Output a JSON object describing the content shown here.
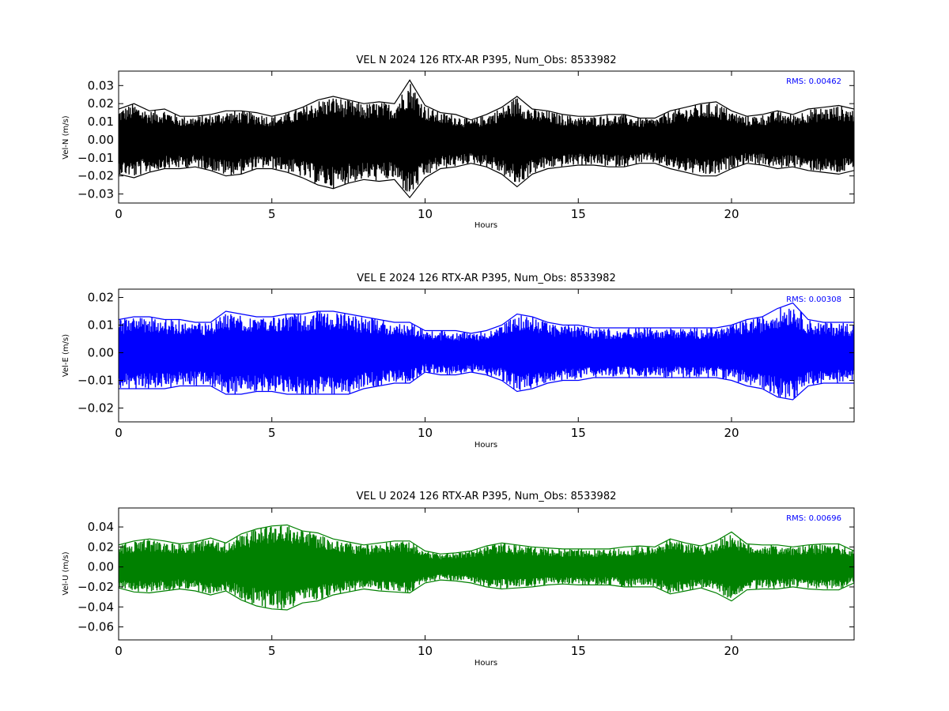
{
  "chart_data": [
    {
      "type": "line",
      "title": "VEL N 2024 126 RTX-AR  P395, Num_Obs: 8533982",
      "xlabel": "Hours",
      "ylabel": "Vel-N (m/s)",
      "xlim": [
        0,
        24
      ],
      "ylim": [
        -0.035,
        0.038
      ],
      "xticks": [
        "0",
        "5",
        "10",
        "15",
        "20"
      ],
      "xtick_values": [
        0,
        5,
        10,
        15,
        20
      ],
      "yticks": [
        "0.03",
        "0.02",
        "0.01",
        "0.00",
        "−0.01",
        "−0.02",
        "−0.03"
      ],
      "ytick_values": [
        0.03,
        0.02,
        0.01,
        0.0,
        -0.01,
        -0.02,
        -0.03
      ],
      "grid": false,
      "color": "#000000",
      "annotation": "RMS:  0.00462",
      "series": [
        {
          "hours": [
            0,
            0.5,
            1,
            1.5,
            2,
            2.5,
            3,
            3.5,
            4,
            4.5,
            5,
            5.5,
            6,
            6.5,
            7,
            7.5,
            8,
            8.5,
            9,
            9.5,
            10,
            10.5,
            11,
            11.5,
            12,
            12.5,
            13,
            13.5,
            14,
            14.5,
            15,
            15.5,
            16,
            16.5,
            17,
            17.5,
            18,
            18.5,
            19,
            19.5,
            20,
            20.5,
            21,
            21.5,
            22,
            22.5,
            23,
            23.5,
            24
          ],
          "upper": [
            0.017,
            0.02,
            0.016,
            0.017,
            0.013,
            0.013,
            0.014,
            0.016,
            0.016,
            0.015,
            0.013,
            0.015,
            0.018,
            0.022,
            0.024,
            0.022,
            0.02,
            0.021,
            0.02,
            0.033,
            0.019,
            0.015,
            0.014,
            0.011,
            0.014,
            0.018,
            0.024,
            0.017,
            0.016,
            0.014,
            0.013,
            0.013,
            0.014,
            0.014,
            0.012,
            0.012,
            0.016,
            0.018,
            0.02,
            0.021,
            0.016,
            0.013,
            0.014,
            0.016,
            0.014,
            0.017,
            0.018,
            0.019,
            0.017
          ],
          "lower": [
            -0.019,
            -0.021,
            -0.018,
            -0.016,
            -0.016,
            -0.015,
            -0.017,
            -0.02,
            -0.019,
            -0.016,
            -0.016,
            -0.018,
            -0.021,
            -0.025,
            -0.027,
            -0.024,
            -0.022,
            -0.023,
            -0.022,
            -0.032,
            -0.021,
            -0.016,
            -0.015,
            -0.013,
            -0.015,
            -0.019,
            -0.026,
            -0.019,
            -0.016,
            -0.015,
            -0.014,
            -0.014,
            -0.015,
            -0.015,
            -0.013,
            -0.013,
            -0.016,
            -0.018,
            -0.02,
            -0.02,
            -0.016,
            -0.013,
            -0.014,
            -0.016,
            -0.015,
            -0.017,
            -0.018,
            -0.019,
            -0.017
          ]
        }
      ]
    },
    {
      "type": "line",
      "title": "VEL E 2024 126 RTX-AR  P395, Num_Obs: 8533982",
      "xlabel": "Hours",
      "ylabel": "Vel-E (m/s)",
      "xlim": [
        0,
        24
      ],
      "ylim": [
        -0.025,
        0.023
      ],
      "xticks": [
        "0",
        "5",
        "10",
        "15",
        "20"
      ],
      "xtick_values": [
        0,
        5,
        10,
        15,
        20
      ],
      "yticks": [
        "0.02",
        "0.01",
        "0.00",
        "−0.01",
        "−0.02"
      ],
      "ytick_values": [
        0.02,
        0.01,
        0.0,
        -0.01,
        -0.02
      ],
      "grid": false,
      "color": "#0000ff",
      "annotation": "RMS:  0.00308",
      "series": [
        {
          "hours": [
            0,
            0.5,
            1,
            1.5,
            2,
            2.5,
            3,
            3.5,
            4,
            4.5,
            5,
            5.5,
            6,
            6.5,
            7,
            7.5,
            8,
            8.5,
            9,
            9.5,
            10,
            10.5,
            11,
            11.5,
            12,
            12.5,
            13,
            13.5,
            14,
            14.5,
            15,
            15.5,
            16,
            16.5,
            17,
            17.5,
            18,
            18.5,
            19,
            19.5,
            20,
            20.5,
            21,
            21.5,
            22,
            22.5,
            23,
            23.5,
            24
          ],
          "upper": [
            0.012,
            0.013,
            0.013,
            0.012,
            0.012,
            0.011,
            0.011,
            0.015,
            0.014,
            0.013,
            0.013,
            0.014,
            0.014,
            0.015,
            0.015,
            0.014,
            0.013,
            0.012,
            0.011,
            0.011,
            0.008,
            0.008,
            0.008,
            0.007,
            0.008,
            0.01,
            0.014,
            0.013,
            0.011,
            0.01,
            0.01,
            0.009,
            0.009,
            0.009,
            0.009,
            0.009,
            0.009,
            0.009,
            0.009,
            0.009,
            0.01,
            0.012,
            0.013,
            0.016,
            0.018,
            0.012,
            0.011,
            0.011,
            0.011
          ],
          "lower": [
            -0.013,
            -0.013,
            -0.013,
            -0.013,
            -0.012,
            -0.012,
            -0.012,
            -0.015,
            -0.015,
            -0.014,
            -0.014,
            -0.015,
            -0.015,
            -0.015,
            -0.015,
            -0.015,
            -0.013,
            -0.012,
            -0.011,
            -0.011,
            -0.007,
            -0.008,
            -0.008,
            -0.007,
            -0.008,
            -0.01,
            -0.014,
            -0.013,
            -0.011,
            -0.01,
            -0.01,
            -0.009,
            -0.009,
            -0.009,
            -0.009,
            -0.009,
            -0.009,
            -0.009,
            -0.009,
            -0.009,
            -0.01,
            -0.012,
            -0.013,
            -0.016,
            -0.017,
            -0.012,
            -0.011,
            -0.011,
            -0.011
          ]
        }
      ]
    },
    {
      "type": "line",
      "title": "VEL U 2024 126 RTX-AR  P395, Num_Obs: 8533982",
      "xlabel": "Hours",
      "ylabel": "Vel-U (m/s)",
      "xlim": [
        0,
        24
      ],
      "ylim": [
        -0.073,
        0.059
      ],
      "xticks": [
        "0",
        "5",
        "10",
        "15",
        "20"
      ],
      "xtick_values": [
        0,
        5,
        10,
        15,
        20
      ],
      "yticks": [
        "0.04",
        "0.02",
        "0.00",
        "−0.02",
        "−0.04",
        "−0.06"
      ],
      "ytick_values": [
        0.04,
        0.02,
        0.0,
        -0.02,
        -0.04,
        -0.06
      ],
      "grid": false,
      "color": "#008000",
      "annotation": "RMS:  0.00696",
      "series": [
        {
          "hours": [
            0,
            0.5,
            1,
            1.5,
            2,
            2.5,
            3,
            3.5,
            4,
            4.5,
            5,
            5.5,
            6,
            6.5,
            7,
            7.5,
            8,
            8.5,
            9,
            9.5,
            10,
            10.5,
            11,
            11.5,
            12,
            12.5,
            13,
            13.5,
            14,
            14.5,
            15,
            15.5,
            16,
            16.5,
            17,
            17.5,
            18,
            18.5,
            19,
            19.5,
            20,
            20.5,
            21,
            21.5,
            22,
            22.5,
            23,
            23.5,
            24
          ],
          "upper": [
            0.022,
            0.026,
            0.028,
            0.026,
            0.023,
            0.025,
            0.029,
            0.024,
            0.033,
            0.038,
            0.041,
            0.042,
            0.036,
            0.034,
            0.028,
            0.025,
            0.022,
            0.024,
            0.026,
            0.026,
            0.016,
            0.013,
            0.014,
            0.016,
            0.021,
            0.024,
            0.022,
            0.02,
            0.019,
            0.018,
            0.018,
            0.018,
            0.018,
            0.02,
            0.021,
            0.02,
            0.028,
            0.024,
            0.021,
            0.026,
            0.035,
            0.023,
            0.022,
            0.022,
            0.02,
            0.022,
            0.023,
            0.023,
            0.016
          ],
          "lower": [
            -0.021,
            -0.025,
            -0.026,
            -0.024,
            -0.022,
            -0.024,
            -0.028,
            -0.024,
            -0.033,
            -0.039,
            -0.042,
            -0.043,
            -0.036,
            -0.034,
            -0.028,
            -0.025,
            -0.022,
            -0.024,
            -0.025,
            -0.026,
            -0.016,
            -0.013,
            -0.014,
            -0.016,
            -0.02,
            -0.022,
            -0.021,
            -0.02,
            -0.018,
            -0.017,
            -0.018,
            -0.018,
            -0.018,
            -0.02,
            -0.02,
            -0.02,
            -0.027,
            -0.024,
            -0.021,
            -0.026,
            -0.034,
            -0.023,
            -0.022,
            -0.022,
            -0.02,
            -0.022,
            -0.023,
            -0.023,
            -0.016
          ]
        }
      ]
    }
  ]
}
